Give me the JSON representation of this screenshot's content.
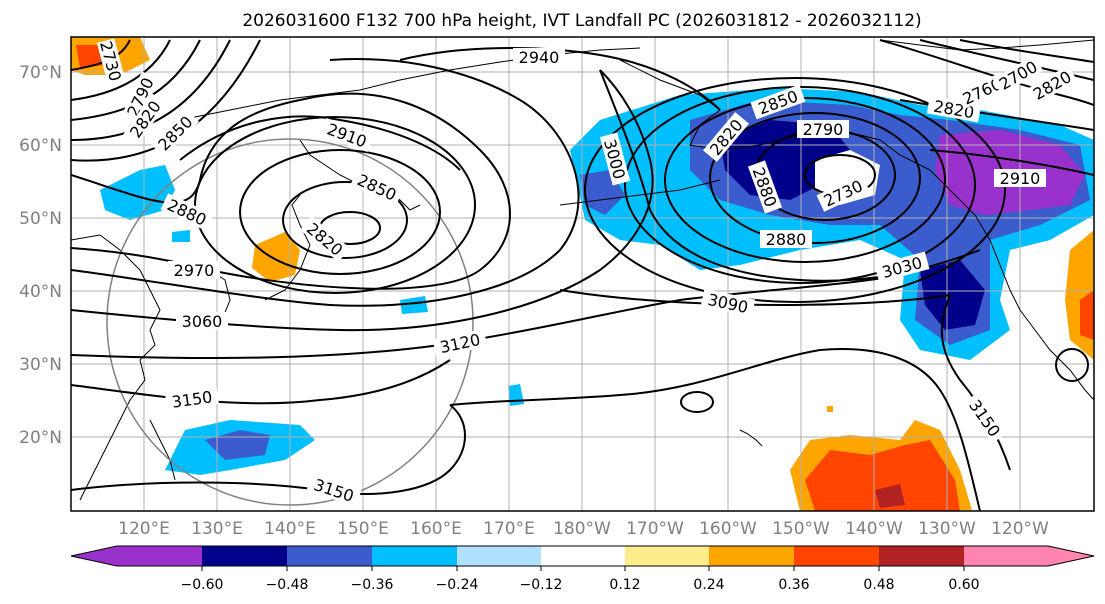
{
  "title": "2026031600 F132 700 hPa height, IVT Landfall PC (2026031812 - 2026032112)",
  "lat_labels": [
    "70°N",
    "60°N",
    "50°N",
    "40°N",
    "30°N",
    "20°N"
  ],
  "lon_labels": [
    "120°E",
    "130°E",
    "140°E",
    "150°E",
    "160°E",
    "170°E",
    "180°W",
    "170°W",
    "160°W",
    "150°W",
    "140°W",
    "130°W",
    "120°W"
  ],
  "colorbar": {
    "ticks": [
      "−0.60",
      "−0.48",
      "−0.36",
      "−0.24",
      "−0.12",
      "0.12",
      "0.24",
      "0.36",
      "0.48",
      "0.60"
    ],
    "colors": [
      "#9932cc",
      "#00008b",
      "#3a5ccc",
      "#00bfff",
      "#b0e2ff",
      "#ffffff",
      "#ffec8b",
      "#ffa500",
      "#ff4500",
      "#b22222",
      "#ff85b0"
    ]
  },
  "contour_labels": [
    {
      "id": "c2940",
      "text": "2940"
    },
    {
      "id": "c2910a",
      "text": "2910"
    },
    {
      "id": "c2850a",
      "text": "2850"
    },
    {
      "id": "c2820a",
      "text": "2820"
    },
    {
      "id": "c2880a",
      "text": "2880"
    },
    {
      "id": "c2970",
      "text": "2970"
    },
    {
      "id": "c3060",
      "text": "3060"
    },
    {
      "id": "c3120",
      "text": "3120"
    },
    {
      "id": "c3150a",
      "text": "3150"
    },
    {
      "id": "c3150b",
      "text": "3150"
    },
    {
      "id": "c3000",
      "text": "3000"
    },
    {
      "id": "c2850b",
      "text": "2850"
    },
    {
      "id": "c2820b",
      "text": "2820"
    },
    {
      "id": "c2790a",
      "text": "2790"
    },
    {
      "id": "c2730",
      "text": "2730"
    },
    {
      "id": "c2880b",
      "text": "2880"
    },
    {
      "id": "c3030",
      "text": "3030"
    },
    {
      "id": "c3090",
      "text": "3090"
    },
    {
      "id": "c3150c",
      "text": "3150"
    },
    {
      "id": "c2820c",
      "text": "2820"
    },
    {
      "id": "c2910b",
      "text": "2910"
    },
    {
      "id": "c2760",
      "text": "2760"
    },
    {
      "id": "c2700",
      "text": "2700"
    },
    {
      "id": "c2730w",
      "text": "2730"
    },
    {
      "id": "c2790w",
      "text": "2790"
    },
    {
      "id": "c2820w",
      "text": "2820"
    },
    {
      "id": "c2850w",
      "text": "2850"
    },
    {
      "id": "c2880w",
      "text": "2880"
    },
    {
      "id": "c2820w2",
      "text": "2820"
    }
  ]
}
